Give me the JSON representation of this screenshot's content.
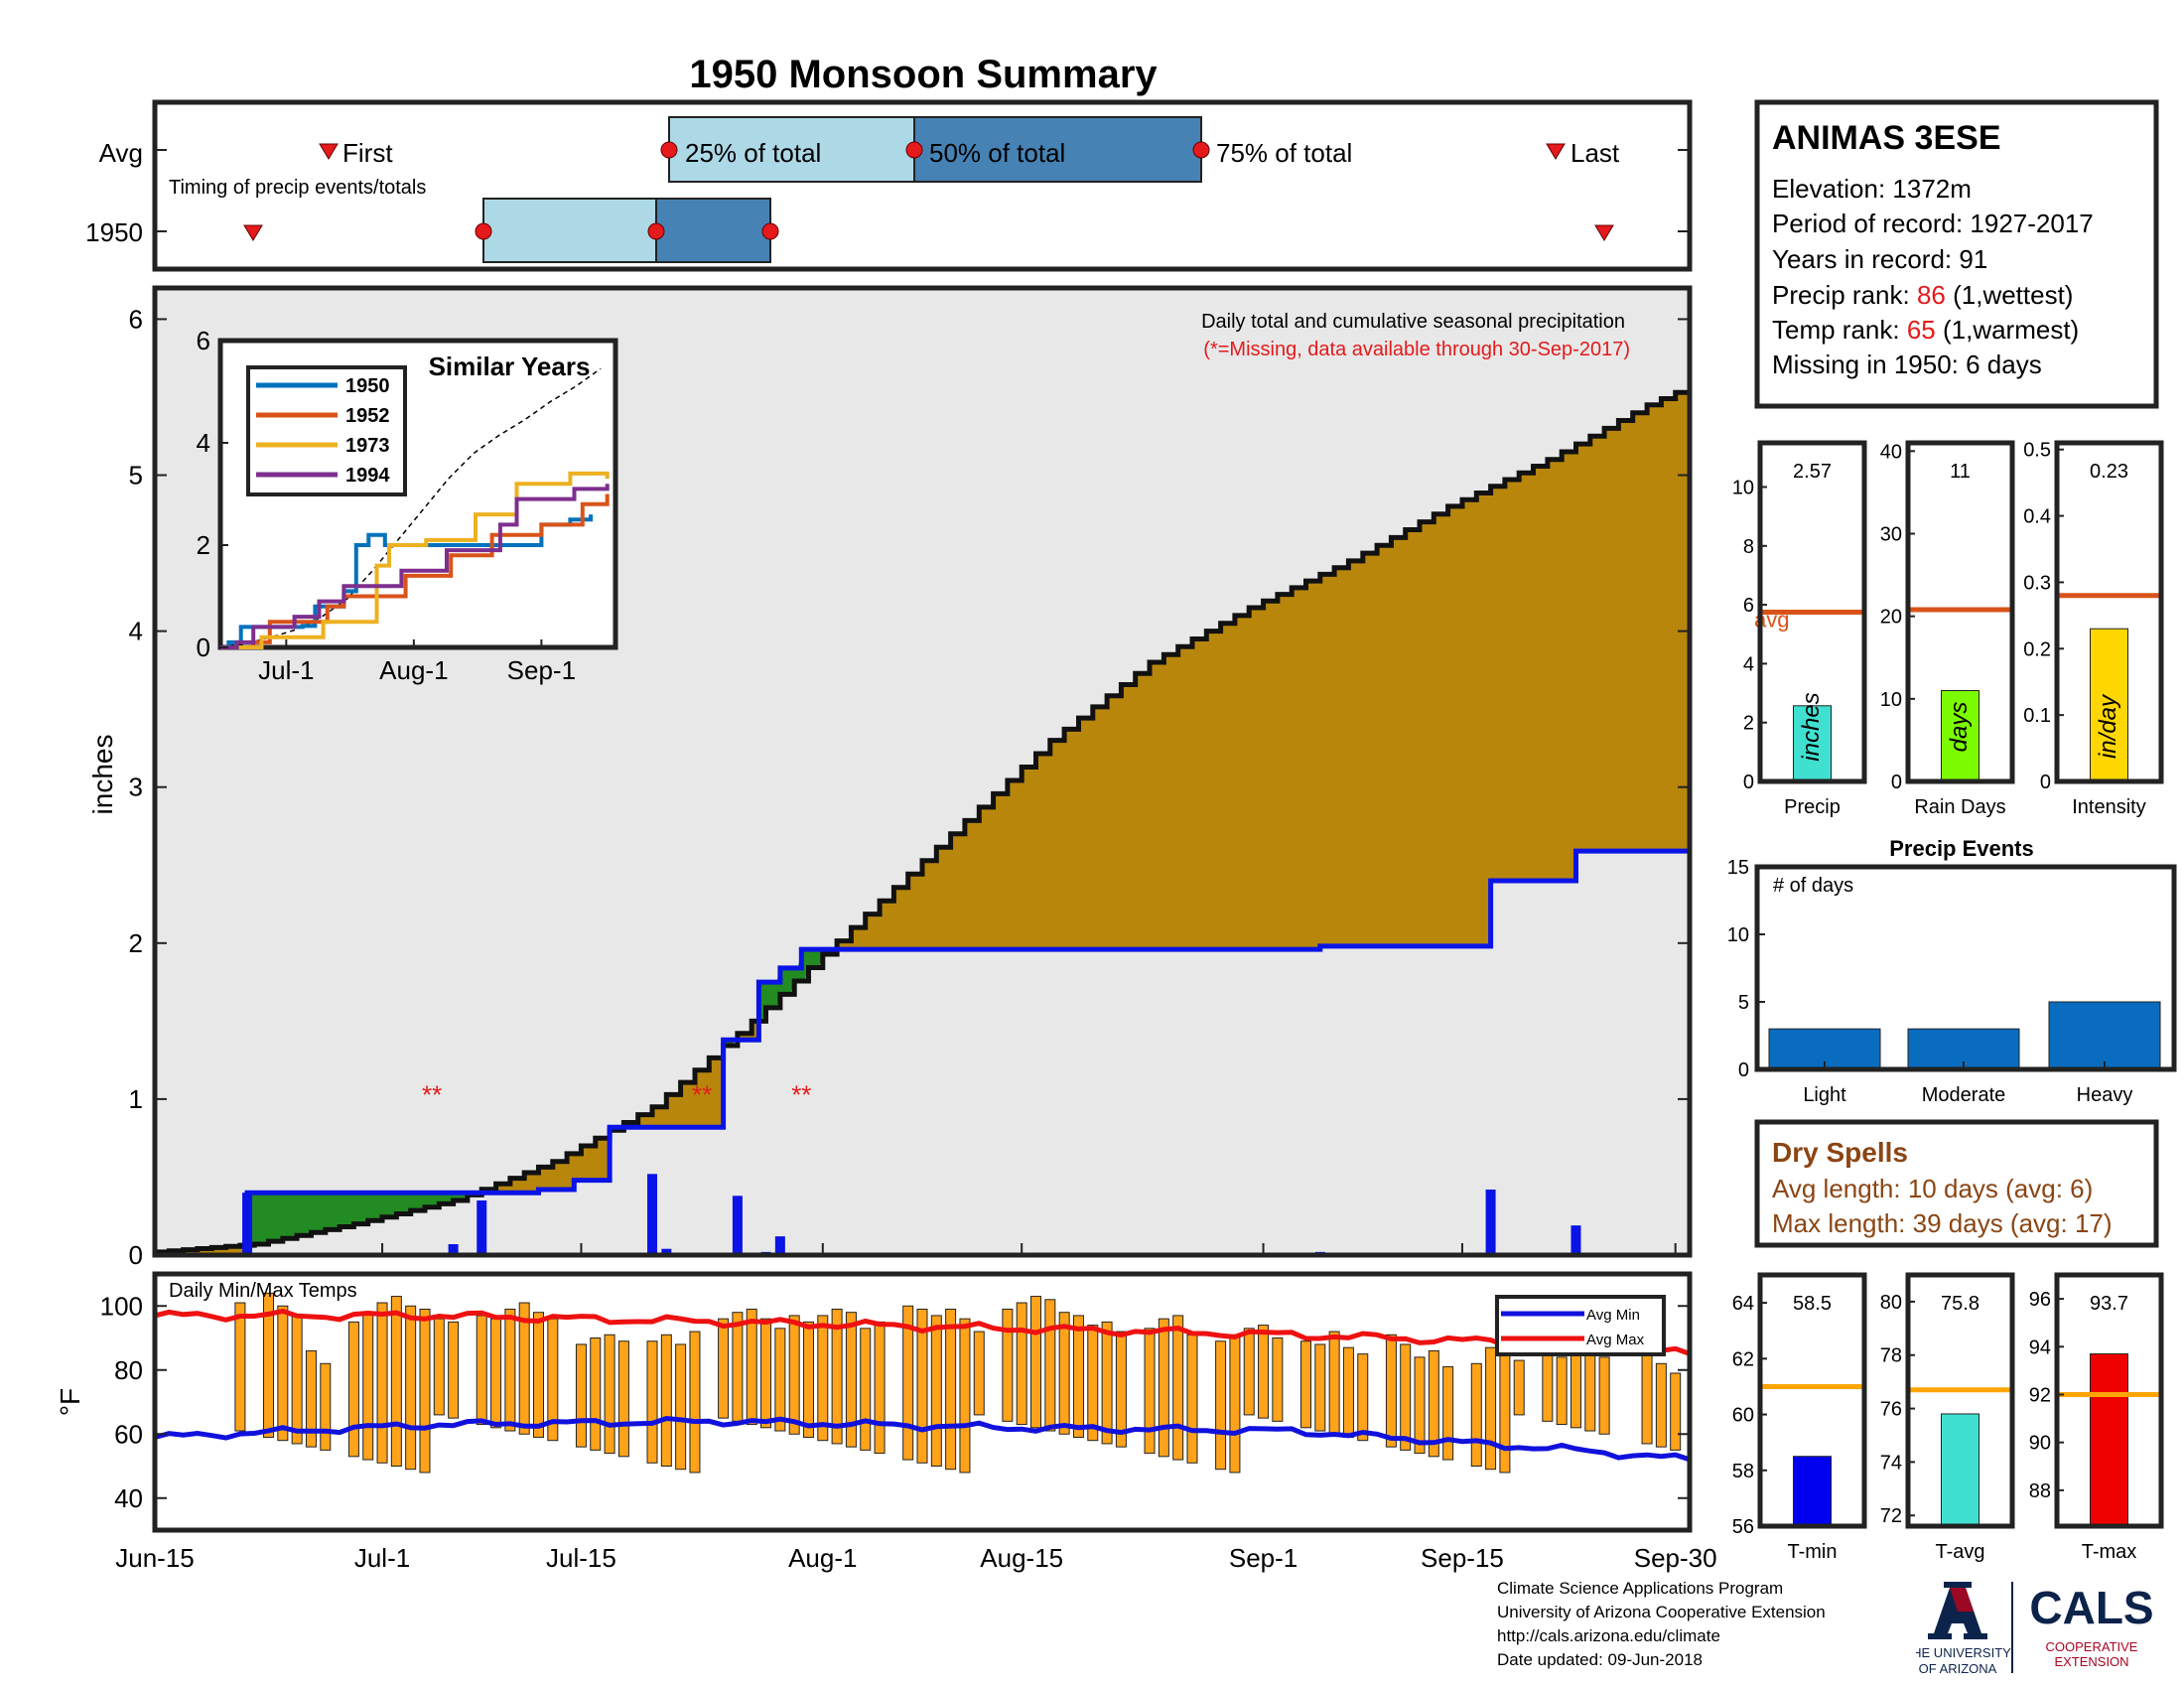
{
  "title": "1950 Monsoon Summary",
  "timing": {
    "row_avg": "Avg",
    "row_year": "1950",
    "caption": "Timing of precip events/totals",
    "first": "First",
    "last": "Last",
    "p25": "25% of total",
    "p50": "50% of total",
    "p75": "75% of total",
    "avg_marks": {
      "first": "Jun-30",
      "p25": "Jul-21",
      "p50": "Aug-3",
      "p75": "Aug-18",
      "last": "Sep-22"
    },
    "year_marks": {
      "first": "Jun-20",
      "p25": "Jul-8",
      "p50": "Jul-17",
      "p75": "Jul-23",
      "last": "Sep-25"
    }
  },
  "station": {
    "name": "ANIMAS 3ESE",
    "elevation": "Elevation: 1372m",
    "period": "Period of record: 1927-2017",
    "years": "Years in record: 91",
    "precip_rank_label": "Precip rank: ",
    "precip_rank": "86",
    "precip_rank_note": " (1,wettest)",
    "temp_rank_label": "Temp rank: ",
    "temp_rank": "65",
    "temp_rank_note": " (1,warmest)",
    "missing": "Missing in 1950: 6 days"
  },
  "main": {
    "annotation": "Daily total and cumulative seasonal precipitation",
    "missing_note": "(*=Missing, data available through 30-Sep-2017)",
    "ylabel": "inches",
    "yticks": [
      "0",
      "1",
      "2",
      "3",
      "4",
      "5",
      "6"
    ],
    "xticks": [
      "Jun-15",
      "Jul-1",
      "Jul-15",
      "Aug-1",
      "Aug-15",
      "Sep-1",
      "Sep-15",
      "Sep-30"
    ],
    "missing_marker": "**"
  },
  "inset": {
    "title": "Similar Years",
    "yticks": [
      "0",
      "2",
      "4",
      "6"
    ],
    "xticks": [
      "Jul-1",
      "Aug-1",
      "Sep-1"
    ],
    "legend": [
      "1950",
      "1952",
      "1973",
      "1994"
    ]
  },
  "bars": {
    "precip": {
      "value": "2.57",
      "unit": "inches",
      "label": "Precip",
      "avg": "avg",
      "yticks": [
        "0",
        "2",
        "4",
        "6",
        "8",
        "10"
      ]
    },
    "raindays": {
      "value": "11",
      "unit": "days",
      "label": "Rain Days",
      "yticks": [
        "0",
        "10",
        "20",
        "30",
        "40"
      ]
    },
    "intensity": {
      "value": "0.23",
      "unit": "in/day",
      "label": "Intensity",
      "yticks": [
        "0",
        "0.1",
        "0.2",
        "0.3",
        "0.4",
        "0.5"
      ]
    }
  },
  "events": {
    "title": "Precip Events",
    "ylabel": "# of days",
    "yticks": [
      "0",
      "5",
      "10",
      "15"
    ],
    "categories": [
      "Light",
      "Moderate",
      "Heavy"
    ]
  },
  "dry": {
    "title": "Dry Spells",
    "avg": "Avg length: 10 days (avg: 6)",
    "max": "Max length: 39 days (avg: 17)"
  },
  "temps": {
    "label": "Daily Min/Max Temps",
    "ylabel": "°F",
    "yticks": [
      "40",
      "60",
      "80",
      "100"
    ],
    "legend_min": "Avg Min",
    "legend_max": "Avg Max"
  },
  "tbars": {
    "tmin": {
      "value": "58.5",
      "label": "T-min",
      "yticks": [
        "56",
        "58",
        "60",
        "62",
        "64"
      ]
    },
    "tavg": {
      "value": "75.8",
      "label": "T-avg",
      "yticks": [
        "72",
        "74",
        "76",
        "78",
        "80"
      ]
    },
    "tmax": {
      "value": "93.7",
      "label": "T-max",
      "yticks": [
        "88",
        "90",
        "92",
        "94",
        "96"
      ]
    }
  },
  "footer": {
    "line1": "Climate Science Applications Program",
    "line2": "University of Arizona Cooperative Extension",
    "line3": "http://cals.arizona.edu/climate",
    "line4": " Date updated: 09-Jun-2018"
  },
  "logos": {
    "ua_line1": "THE UNIVERSITY",
    "ua_line2": "OF ARIZONA",
    "cals": "CALS",
    "cals_line1": "COOPERATIVE",
    "cals_line2": "EXTENSION"
  },
  "colors": {
    "title": "#e41a1c",
    "cum_avg_fill": "#b8860b",
    "cum_year_line": "#0a14e6",
    "above_avg_fill": "#228b22",
    "plot_bg": "#e8e8e8",
    "temp_bar": "#ffa31a",
    "avg_max_line": "#ee1111",
    "avg_min_line": "#1111dd",
    "precip_bar": "#40e0d0",
    "raindays_bar": "#7cfc00",
    "intensity_bar": "#ffd700",
    "events_bar": "#0a6cbf",
    "avg_line_precip": "#d95319",
    "avg_line_temp": "#ffa500",
    "dry_text": "#8b4513"
  },
  "chart_data": [
    {
      "type": "area",
      "name_ref": "main",
      "title": "Daily total and cumulative seasonal precipitation",
      "ylabel": "inches",
      "xlim": [
        "Jun-15",
        "Sep-30"
      ],
      "ylim": [
        0,
        6.2
      ],
      "avg_cumulative": [
        [
          0,
          0.02
        ],
        [
          7,
          0.07
        ],
        [
          14,
          0.2
        ],
        [
          21,
          0.35
        ],
        [
          28,
          0.6
        ],
        [
          35,
          0.95
        ],
        [
          42,
          1.5
        ],
        [
          49,
          2.1
        ],
        [
          56,
          2.7
        ],
        [
          63,
          3.3
        ],
        [
          70,
          3.8
        ],
        [
          77,
          4.15
        ],
        [
          84,
          4.45
        ],
        [
          91,
          4.8
        ],
        [
          98,
          5.1
        ],
        [
          105,
          5.45
        ],
        [
          108,
          5.57
        ]
      ],
      "year_cumulative_steps": [
        [
          0,
          0
        ],
        [
          6.5,
          0
        ],
        [
          6.5,
          0.4
        ],
        [
          27,
          0.4
        ],
        [
          27,
          0.42
        ],
        [
          29.5,
          0.42
        ],
        [
          29.5,
          0.48
        ],
        [
          32,
          0.48
        ],
        [
          32,
          0.82
        ],
        [
          40,
          0.82
        ],
        [
          40,
          1.38
        ],
        [
          42.5,
          1.38
        ],
        [
          42.5,
          1.75
        ],
        [
          44,
          1.75
        ],
        [
          44,
          1.84
        ],
        [
          45.5,
          1.84
        ],
        [
          45.5,
          1.96
        ],
        [
          82,
          1.96
        ],
        [
          82,
          1.98
        ],
        [
          94,
          1.98
        ],
        [
          94,
          2.4
        ],
        [
          100,
          2.4
        ],
        [
          100,
          2.59
        ],
        [
          108,
          2.59
        ]
      ],
      "daily_precip": [
        [
          6.5,
          0.4
        ],
        [
          21,
          0.07
        ],
        [
          23,
          0.35
        ],
        [
          35,
          0.52
        ],
        [
          36,
          0.04
        ],
        [
          41,
          0.38
        ],
        [
          43,
          0.02
        ],
        [
          44,
          0.12
        ],
        [
          82,
          0.02
        ],
        [
          94,
          0.42
        ],
        [
          100,
          0.19
        ]
      ],
      "missing_days": [
        19.5,
        38.5,
        45.5
      ]
    },
    {
      "type": "line",
      "name_ref": "inset",
      "title": "Similar Years",
      "ylim": [
        0,
        6
      ],
      "x": [
        "Jun-15",
        "Sep-30"
      ],
      "series": [
        {
          "name": "1950",
          "values": [
            [
              0,
              0
            ],
            [
              2,
              0.1
            ],
            [
              5,
              0.4
            ],
            [
              20,
              0.42
            ],
            [
              23,
              0.8
            ],
            [
              30,
              1.1
            ],
            [
              33,
              2.0
            ],
            [
              36,
              2.2
            ],
            [
              40,
              2.0
            ],
            [
              60,
              2.0
            ],
            [
              78,
              2.4
            ],
            [
              85,
              2.5
            ],
            [
              90,
              2.6
            ]
          ]
        },
        {
          "name": "1952",
          "values": [
            [
              0,
              0
            ],
            [
              8,
              0.1
            ],
            [
              12,
              0.5
            ],
            [
              26,
              0.8
            ],
            [
              30,
              1.0
            ],
            [
              45,
              1.4
            ],
            [
              56,
              1.8
            ],
            [
              66,
              2.2
            ],
            [
              78,
              2.4
            ],
            [
              88,
              2.8
            ],
            [
              94,
              3.0
            ]
          ]
        },
        {
          "name": "1973",
          "values": [
            [
              0,
              0
            ],
            [
              5,
              0
            ],
            [
              10,
              0.2
            ],
            [
              25,
              0.5
            ],
            [
              38,
              1.6
            ],
            [
              41,
              2.0
            ],
            [
              50,
              2.1
            ],
            [
              62,
              2.6
            ],
            [
              70,
              2.6
            ],
            [
              72,
              3.2
            ],
            [
              85,
              3.4
            ],
            [
              94,
              3.3
            ]
          ]
        },
        {
          "name": "1994",
          "values": [
            [
              0,
              0
            ],
            [
              4,
              0.1
            ],
            [
              8,
              0.4
            ],
            [
              18,
              0.6
            ],
            [
              24,
              0.9
            ],
            [
              30,
              1.2
            ],
            [
              44,
              1.5
            ],
            [
              55,
              1.9
            ],
            [
              68,
              2.4
            ],
            [
              72,
              2.9
            ],
            [
              86,
              3.1
            ],
            [
              94,
              3.2
            ]
          ]
        }
      ]
    },
    {
      "type": "bar",
      "name_ref": "small-bars",
      "categories": [
        "Precip",
        "Rain Days",
        "Intensity"
      ],
      "values": [
        2.57,
        11,
        0.23
      ],
      "averages": [
        5.75,
        20.8,
        0.28
      ],
      "ylims": [
        [
          0,
          11.5
        ],
        [
          0,
          41
        ],
        [
          0,
          0.51
        ]
      ]
    },
    {
      "type": "bar",
      "name_ref": "events",
      "title": "Precip Events",
      "ylabel": "# of days",
      "categories": [
        "Light",
        "Moderate",
        "Heavy"
      ],
      "values": [
        3,
        3,
        5
      ],
      "ylim": [
        0,
        15
      ]
    },
    {
      "type": "bar",
      "name_ref": "temps",
      "title": "Daily Min/Max Temps",
      "ylabel": "°F",
      "ylim": [
        30,
        110
      ],
      "series": [
        {
          "name": "Avg Max",
          "values": [
            [
              0,
              97
            ],
            [
              20,
              97
            ],
            [
              40,
              95
            ],
            [
              60,
              93
            ],
            [
              80,
              91
            ],
            [
              100,
              88
            ],
            [
              108,
              85
            ]
          ]
        },
        {
          "name": "Avg Min",
          "values": [
            [
              0,
              59
            ],
            [
              20,
              63
            ],
            [
              40,
              64
            ],
            [
              60,
              62
            ],
            [
              80,
              61
            ],
            [
              100,
              55
            ],
            [
              108,
              52
            ]
          ]
        }
      ]
    },
    {
      "type": "bar",
      "name_ref": "temp-bars",
      "categories": [
        "T-min",
        "T-avg",
        "T-max"
      ],
      "values": [
        58.5,
        75.8,
        93.7
      ],
      "averages": [
        61.0,
        76.7,
        92.0
      ],
      "ylims": [
        [
          56,
          65
        ],
        [
          71.6,
          81
        ],
        [
          86.5,
          97
        ]
      ]
    }
  ]
}
